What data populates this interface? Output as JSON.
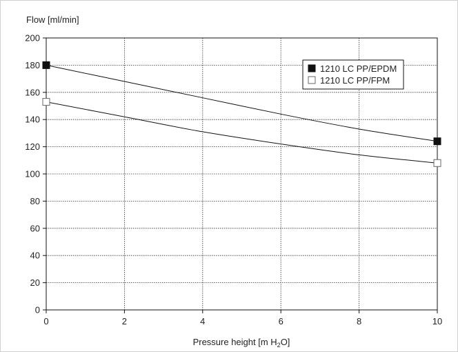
{
  "chart_data": {
    "type": "line",
    "ylabel": "Flow [ml/min]",
    "xlabel": {
      "prefix": "Pressure height [m H",
      "subscript": "2",
      "suffix": "O]"
    },
    "xlim": [
      0,
      10
    ],
    "ylim": [
      0,
      200
    ],
    "xticks": [
      0,
      2,
      4,
      6,
      8,
      10
    ],
    "yticks": [
      0,
      20,
      40,
      60,
      80,
      100,
      120,
      140,
      160,
      180,
      200
    ],
    "grid": true,
    "grid_style": "dotted",
    "legend_position": "top-right",
    "series": [
      {
        "name": "1210 LC PP/EPDM",
        "marker": "filled-square",
        "color": "#111111",
        "points": [
          {
            "x": 0,
            "y": 180
          },
          {
            "x": 10,
            "y": 124
          }
        ],
        "curve": [
          {
            "x": 0,
            "y": 180
          },
          {
            "x": 2,
            "y": 168
          },
          {
            "x": 4,
            "y": 156
          },
          {
            "x": 6,
            "y": 144
          },
          {
            "x": 8,
            "y": 133
          },
          {
            "x": 10,
            "y": 124
          }
        ]
      },
      {
        "name": "1210 LC PP/FPM",
        "marker": "open-square",
        "color": "#111111",
        "points": [
          {
            "x": 0,
            "y": 153
          },
          {
            "x": 10,
            "y": 108
          }
        ],
        "curve": [
          {
            "x": 0,
            "y": 153
          },
          {
            "x": 2,
            "y": 142
          },
          {
            "x": 4,
            "y": 131
          },
          {
            "x": 6,
            "y": 122
          },
          {
            "x": 8,
            "y": 114
          },
          {
            "x": 10,
            "y": 108
          }
        ]
      }
    ]
  }
}
